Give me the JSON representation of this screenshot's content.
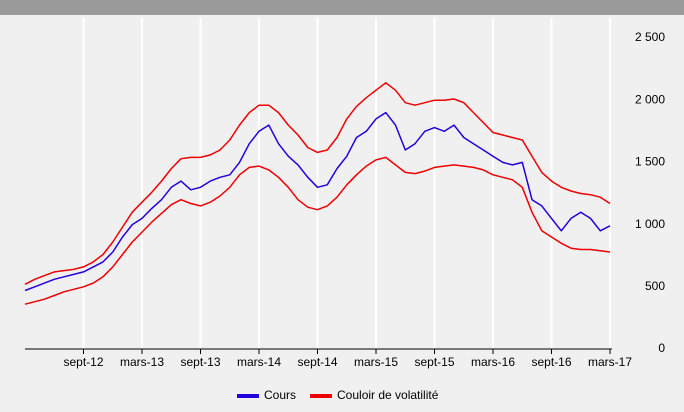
{
  "chart_data": {
    "type": "line",
    "x": [
      "2012-03",
      "2012-04",
      "2012-05",
      "2012-06",
      "2012-07",
      "2012-08",
      "2012-09",
      "2012-10",
      "2012-11",
      "2012-12",
      "2013-01",
      "2013-02",
      "2013-03",
      "2013-04",
      "2013-05",
      "2013-06",
      "2013-07",
      "2013-08",
      "2013-09",
      "2013-10",
      "2013-11",
      "2013-12",
      "2014-01",
      "2014-02",
      "2014-03",
      "2014-04",
      "2014-05",
      "2014-06",
      "2014-07",
      "2014-08",
      "2014-09",
      "2014-10",
      "2014-11",
      "2014-12",
      "2015-01",
      "2015-02",
      "2015-03",
      "2015-04",
      "2015-05",
      "2015-06",
      "2015-07",
      "2015-08",
      "2015-09",
      "2015-10",
      "2015-11",
      "2015-12",
      "2016-01",
      "2016-02",
      "2016-03",
      "2016-04",
      "2016-05",
      "2016-06",
      "2016-07",
      "2016-08",
      "2016-09",
      "2016-10",
      "2016-11",
      "2016-12",
      "2017-01",
      "2017-02",
      "2017-03"
    ],
    "series": [
      {
        "name": "Cours",
        "color": "#2200dd",
        "values": [
          470,
          500,
          530,
          560,
          580,
          600,
          620,
          660,
          700,
          780,
          900,
          1000,
          1050,
          1130,
          1200,
          1300,
          1350,
          1280,
          1300,
          1350,
          1380,
          1400,
          1500,
          1650,
          1750,
          1800,
          1650,
          1550,
          1480,
          1380,
          1300,
          1320,
          1450,
          1550,
          1700,
          1750,
          1850,
          1900,
          1800,
          1600,
          1650,
          1750,
          1780,
          1750,
          1800,
          1700,
          1650,
          1600,
          1550,
          1500,
          1480,
          1500,
          1200,
          1150,
          1050,
          950,
          1050,
          1100,
          1050,
          950,
          990
        ]
      },
      {
        "name": "Couloir de volatilité",
        "color": "#ee0000",
        "values": [
          520,
          560,
          590,
          620,
          630,
          640,
          660,
          700,
          760,
          860,
          980,
          1100,
          1180,
          1260,
          1350,
          1450,
          1530,
          1540,
          1540,
          1560,
          1600,
          1680,
          1800,
          1900,
          1960,
          1960,
          1900,
          1800,
          1720,
          1620,
          1580,
          1600,
          1700,
          1850,
          1950,
          2020,
          2080,
          2140,
          2080,
          1980,
          1960,
          1980,
          2000,
          2000,
          2010,
          1980,
          1900,
          1820,
          1740,
          1720,
          1700,
          1680,
          1550,
          1420,
          1350,
          1300,
          1270,
          1250,
          1240,
          1220,
          1170
        ]
      },
      {
        "color": "#ee0000",
        "values": [
          360,
          380,
          400,
          430,
          460,
          480,
          500,
          530,
          580,
          660,
          760,
          860,
          940,
          1020,
          1090,
          1160,
          1200,
          1170,
          1150,
          1180,
          1230,
          1300,
          1400,
          1460,
          1470,
          1440,
          1380,
          1300,
          1200,
          1140,
          1120,
          1150,
          1220,
          1320,
          1400,
          1470,
          1520,
          1540,
          1480,
          1420,
          1410,
          1430,
          1460,
          1470,
          1480,
          1470,
          1460,
          1440,
          1400,
          1380,
          1360,
          1300,
          1100,
          950,
          900,
          850,
          810,
          800,
          800,
          790,
          780
        ]
      }
    ],
    "xlim": [
      "2012-03",
      "2017-03"
    ],
    "xticks": [
      {
        "value": "2012-09",
        "label": "sept-12"
      },
      {
        "value": "2013-03",
        "label": "mars-13"
      },
      {
        "value": "2013-09",
        "label": "sept-13"
      },
      {
        "value": "2014-03",
        "label": "mars-14"
      },
      {
        "value": "2014-09",
        "label": "sept-14"
      },
      {
        "value": "2015-03",
        "label": "mars-15"
      },
      {
        "value": "2015-09",
        "label": "sept-15"
      },
      {
        "value": "2016-03",
        "label": "mars-16"
      },
      {
        "value": "2016-09",
        "label": "sept-16"
      },
      {
        "value": "2017-03",
        "label": "mars-17"
      }
    ],
    "ylim": [
      0,
      2500
    ],
    "yticks": [
      0,
      500,
      {
        "value": 1000,
        "label": "1 000"
      },
      {
        "value": 1500,
        "label": "1 500"
      },
      {
        "value": 2000,
        "label": "2 000"
      },
      {
        "value": 2500,
        "label": "2 500"
      }
    ],
    "legend": "bottom"
  }
}
